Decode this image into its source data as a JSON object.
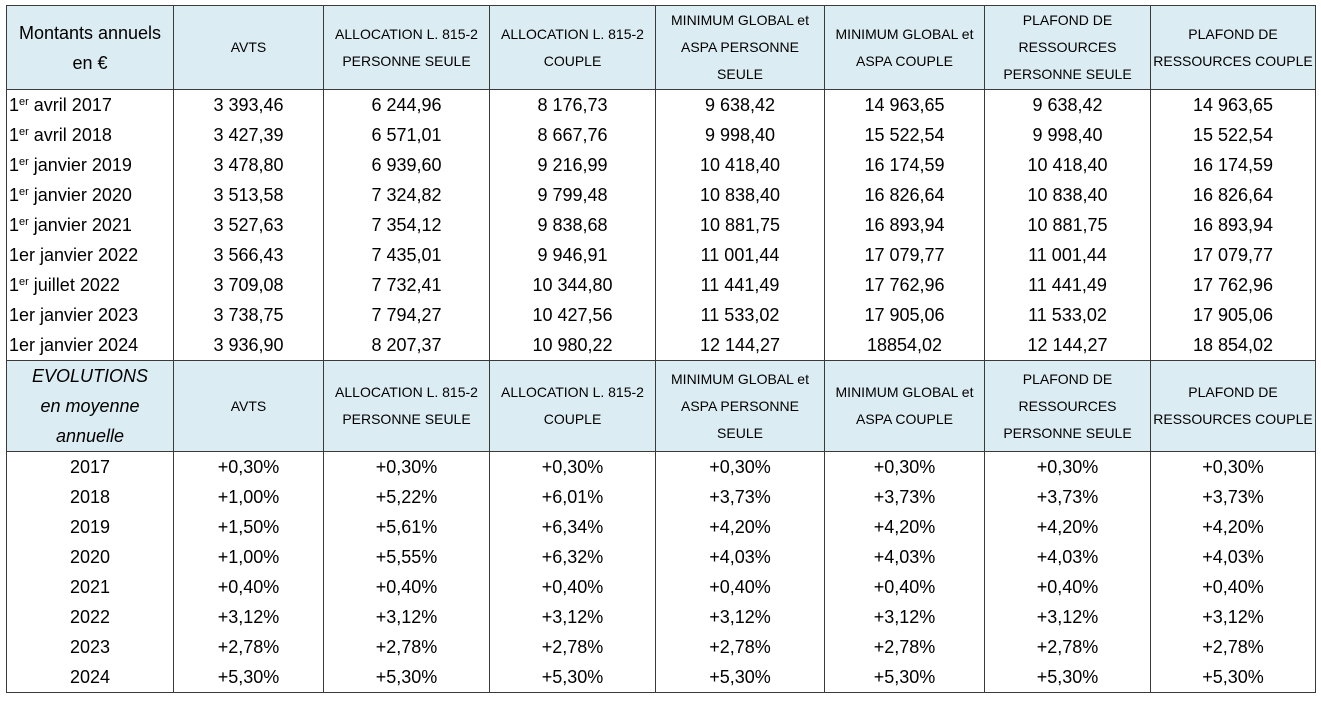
{
  "table1": {
    "header": {
      "corner": "Montants annuels en €",
      "columns": [
        "AVTS",
        "ALLOCATION L. 815-2 PERSONNE SEULE",
        "ALLOCATION L. 815-2 COUPLE",
        "MINIMUM GLOBAL et ASPA PERSONNE SEULE",
        "MINIMUM GLOBAL et ASPA COUPLE",
        "PLAFOND DE RESSOURCES PERSONNE SEULE",
        "PLAFOND DE RESSOURCES COUPLE"
      ]
    },
    "rows": [
      {
        "pre": "1",
        "sup": "er",
        "post": " avril 2017",
        "values": [
          "3 393,46",
          "6 244,96",
          "8 176,73",
          "9 638,42",
          "14 963,65",
          "9 638,42",
          "14 963,65"
        ]
      },
      {
        "pre": "1",
        "sup": "er",
        "post": " avril 2018",
        "values": [
          "3 427,39",
          "6 571,01",
          "8 667,76",
          "9 998,40",
          "15 522,54",
          "9 998,40",
          "15 522,54"
        ]
      },
      {
        "pre": "1",
        "sup": "er",
        "post": " janvier 2019",
        "values": [
          "3 478,80",
          "6 939,60",
          "9 216,99",
          "10 418,40",
          "16 174,59",
          "10 418,40",
          "16 174,59"
        ]
      },
      {
        "pre": "1",
        "sup": "er",
        "post": " janvier 2020",
        "values": [
          "3 513,58",
          "7 324,82",
          "9 799,48",
          "10 838,40",
          "16 826,64",
          "10 838,40",
          "16 826,64"
        ]
      },
      {
        "pre": "1",
        "sup": "er",
        "post": " janvier 2021",
        "values": [
          "3 527,63",
          "7 354,12",
          "9 838,68",
          "10 881,75",
          "16 893,94",
          "10 881,75",
          "16 893,94"
        ]
      },
      {
        "pre": "1er janvier 2022",
        "sup": "",
        "post": "",
        "values": [
          "3 566,43",
          "7 435,01",
          "9 946,91",
          "11 001,44",
          "17 079,77",
          "11 001,44",
          "17 079,77"
        ]
      },
      {
        "pre": "1",
        "sup": "er",
        "post": " juillet 2022",
        "values": [
          "3 709,08",
          "7 732,41",
          "10 344,80",
          "11 441,49",
          "17 762,96",
          "11 441,49",
          "17 762,96"
        ]
      },
      {
        "pre": "1er janvier 2023",
        "sup": "",
        "post": "",
        "values": [
          "3 738,75",
          "7 794,27",
          "10 427,56",
          "11 533,02",
          "17 905,06",
          "11 533,02",
          "17 905,06"
        ]
      },
      {
        "pre": "1er janvier 2024",
        "sup": "",
        "post": "",
        "values": [
          "3 936,90",
          "8 207,37",
          "10 980,22",
          "12 144,27",
          "18854,02",
          "12 144,27",
          "18 854,02"
        ]
      }
    ]
  },
  "table2": {
    "header": {
      "corner_lines": [
        "EVOLUTIONS",
        "en moyenne",
        "annuelle"
      ],
      "columns": [
        "AVTS",
        "ALLOCATION L. 815-2 PERSONNE SEULE",
        "ALLOCATION L. 815-2 COUPLE",
        "MINIMUM GLOBAL et ASPA PERSONNE SEULE",
        "MINIMUM GLOBAL et ASPA COUPLE",
        "PLAFOND DE RESSOURCES PERSONNE SEULE",
        "PLAFOND DE RESSOURCES COUPLE"
      ]
    },
    "rows": [
      {
        "year": "2017",
        "values": [
          "+0,30%",
          "+0,30%",
          "+0,30%",
          "+0,30%",
          "+0,30%",
          "+0,30%",
          "+0,30%"
        ]
      },
      {
        "year": "2018",
        "values": [
          "+1,00%",
          "+5,22%",
          "+6,01%",
          "+3,73%",
          "+3,73%",
          "+3,73%",
          "+3,73%"
        ]
      },
      {
        "year": "2019",
        "values": [
          "+1,50%",
          "+5,61%",
          "+6,34%",
          "+4,20%",
          "+4,20%",
          "+4,20%",
          "+4,20%"
        ]
      },
      {
        "year": "2020",
        "values": [
          "+1,00%",
          "+5,55%",
          "+6,32%",
          "+4,03%",
          "+4,03%",
          "+4,03%",
          "+4,03%"
        ]
      },
      {
        "year": "2021",
        "values": [
          "+0,40%",
          "+0,40%",
          "+0,40%",
          "+0,40%",
          "+0,40%",
          "+0,40%",
          "+0,40%"
        ]
      },
      {
        "year": "2022",
        "values": [
          "+3,12%",
          "+3,12%",
          "+3,12%",
          "+3,12%",
          "+3,12%",
          "+3,12%",
          "+3,12%"
        ]
      },
      {
        "year": "2023",
        "values": [
          "+2,78%",
          "+2,78%",
          "+2,78%",
          "+2,78%",
          "+2,78%",
          "+2,78%",
          "+2,78%"
        ]
      },
      {
        "year": "2024",
        "values": [
          "+5,30%",
          "+5,30%",
          "+5,30%",
          "+5,30%",
          "+5,30%",
          "+5,30%",
          "+5,30%"
        ]
      }
    ]
  }
}
